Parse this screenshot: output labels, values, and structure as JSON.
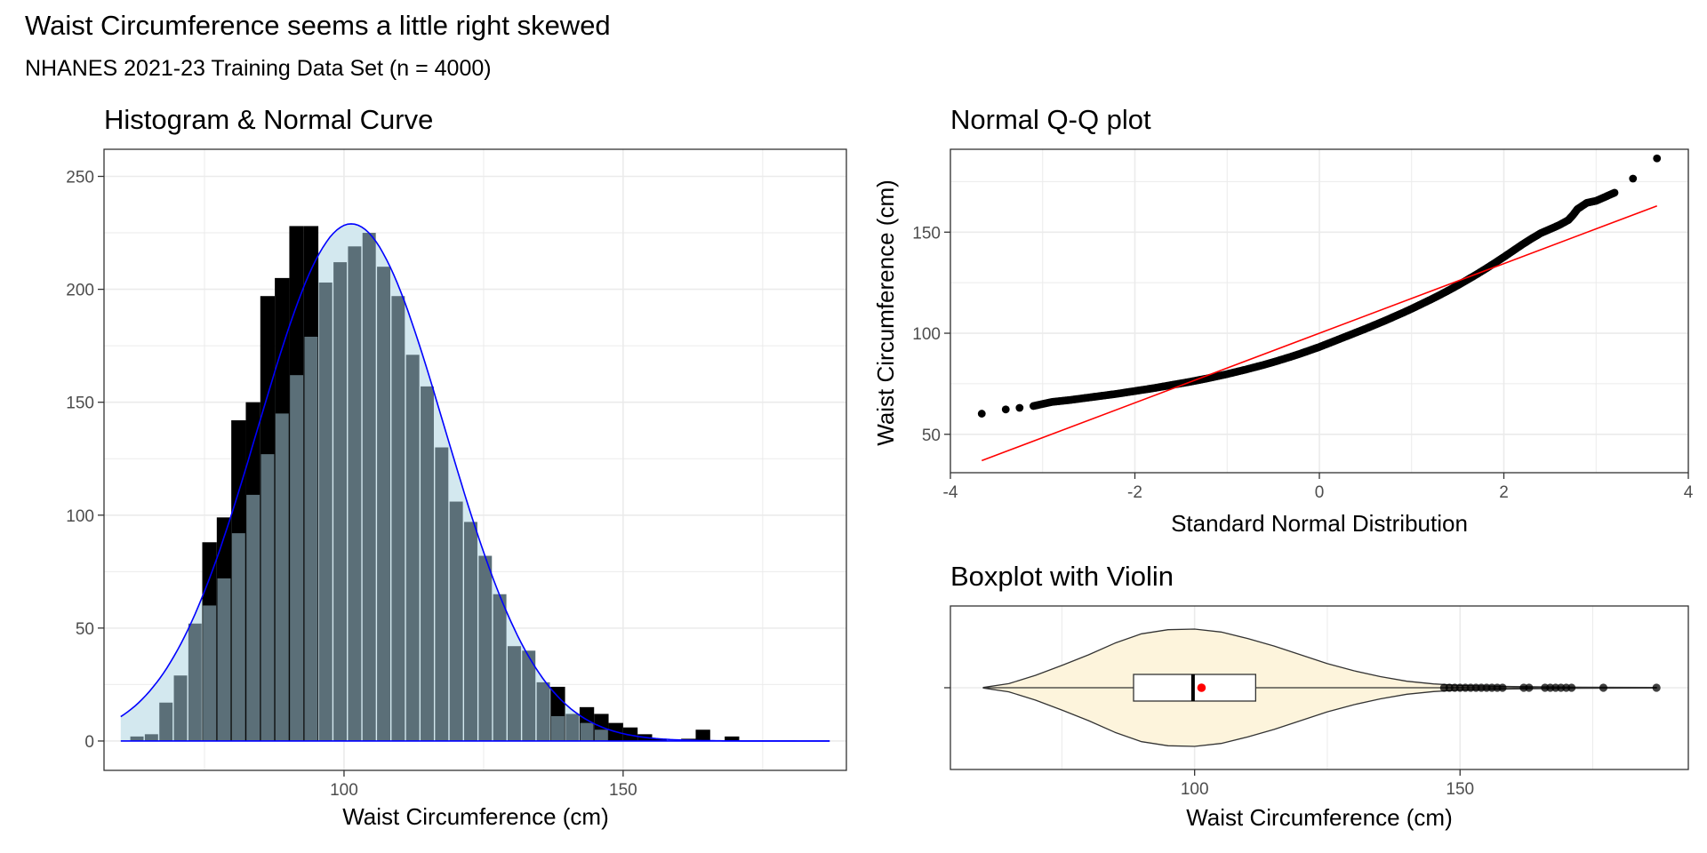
{
  "figure": {
    "title": "Waist Circumference seems a little right skewed",
    "subtitle": "NHANES 2021-23 Training Data Set (n = 4000)"
  },
  "colors": {
    "hist_fill": "#5b6f78",
    "hist_black": "#000000",
    "normal_area": "#d3e8ef",
    "normal_line": "#0000ff",
    "qq_ref_line": "#ff0000",
    "qq_points": "#000000",
    "violin_fill": "#fdf4dc",
    "mean_point": "#ff0000",
    "grid": "#ebebeb",
    "panel_border": "#333333"
  },
  "chart_data": [
    {
      "type": "bar",
      "title": "Histogram & Normal Curve",
      "xlabel": "Waist Circumference (cm)",
      "ylabel": "",
      "xlim": [
        57,
        190
      ],
      "ylim": [
        -13,
        262
      ],
      "x_ticks": [
        100,
        150
      ],
      "y_ticks": [
        0,
        50,
        100,
        150,
        200,
        250
      ],
      "bin_width": 2.6,
      "bins": [
        {
          "x": 62.9,
          "fill": 2,
          "black": 0
        },
        {
          "x": 65.5,
          "fill": 3,
          "black": 0
        },
        {
          "x": 68.1,
          "fill": 17,
          "black": 0
        },
        {
          "x": 70.7,
          "fill": 29,
          "black": 0
        },
        {
          "x": 73.3,
          "fill": 52,
          "black": 0
        },
        {
          "x": 75.9,
          "fill": 60,
          "black": 88
        },
        {
          "x": 78.5,
          "fill": 72,
          "black": 99
        },
        {
          "x": 81.1,
          "fill": 92,
          "black": 142
        },
        {
          "x": 83.7,
          "fill": 109,
          "black": 150
        },
        {
          "x": 86.3,
          "fill": 127,
          "black": 197
        },
        {
          "x": 88.9,
          "fill": 145,
          "black": 205
        },
        {
          "x": 91.5,
          "fill": 162,
          "black": 228
        },
        {
          "x": 94.1,
          "fill": 179,
          "black": 228
        },
        {
          "x": 96.7,
          "fill": 203,
          "black": 0
        },
        {
          "x": 99.3,
          "fill": 212,
          "black": 0
        },
        {
          "x": 101.9,
          "fill": 219,
          "black": 0
        },
        {
          "x": 104.5,
          "fill": 225,
          "black": 0
        },
        {
          "x": 107.1,
          "fill": 210,
          "black": 0
        },
        {
          "x": 109.7,
          "fill": 197,
          "black": 0
        },
        {
          "x": 112.3,
          "fill": 171,
          "black": 0
        },
        {
          "x": 114.9,
          "fill": 157,
          "black": 0
        },
        {
          "x": 117.5,
          "fill": 130,
          "black": 0
        },
        {
          "x": 120.1,
          "fill": 106,
          "black": 0
        },
        {
          "x": 122.7,
          "fill": 97,
          "black": 0
        },
        {
          "x": 125.3,
          "fill": 82,
          "black": 0
        },
        {
          "x": 127.9,
          "fill": 65,
          "black": 0
        },
        {
          "x": 130.5,
          "fill": 42,
          "black": 0
        },
        {
          "x": 133.1,
          "fill": 40,
          "black": 0
        },
        {
          "x": 135.7,
          "fill": 26,
          "black": 0
        },
        {
          "x": 138.3,
          "fill": 11,
          "black": 24
        },
        {
          "x": 140.9,
          "fill": 12,
          "black": 0
        },
        {
          "x": 143.5,
          "fill": 8,
          "black": 15
        },
        {
          "x": 146.1,
          "fill": 5,
          "black": 12
        },
        {
          "x": 148.7,
          "fill": 0,
          "black": 8
        },
        {
          "x": 151.3,
          "fill": 0,
          "black": 6
        },
        {
          "x": 153.9,
          "fill": 0,
          "black": 3
        },
        {
          "x": 156.5,
          "fill": 0,
          "black": 1
        },
        {
          "x": 161.7,
          "fill": 0,
          "black": 1
        },
        {
          "x": 164.3,
          "fill": 0,
          "black": 5
        },
        {
          "x": 169.5,
          "fill": 0,
          "black": 2
        }
      ],
      "normal_curve": {
        "mean": 101.3,
        "sd": 16.7,
        "peak": 229,
        "x_range": [
          60,
          187
        ]
      }
    },
    {
      "type": "scatter",
      "title": "Normal Q-Q plot",
      "xlabel": "Standard Normal Distribution",
      "ylabel": "Waist Circumference (cm)",
      "xlim": [
        -4,
        4
      ],
      "ylim": [
        31,
        191
      ],
      "x_ticks": [
        -4,
        -2,
        0,
        2,
        4
      ],
      "y_ticks": [
        50,
        100,
        150
      ],
      "reference_line": {
        "from": [
          -3.66,
          37
        ],
        "to": [
          3.66,
          163
        ]
      },
      "points": [
        [
          -3.66,
          60.2
        ],
        [
          -3.4,
          62.3
        ],
        [
          -3.25,
          63.1
        ],
        [
          -3.1,
          64.0
        ],
        [
          -3.0,
          65.0
        ],
        [
          -2.9,
          66.0
        ],
        [
          -2.8,
          66.5
        ],
        [
          -2.7,
          67.0
        ],
        [
          -2.6,
          67.6
        ],
        [
          -2.5,
          68.2
        ],
        [
          -2.4,
          68.8
        ],
        [
          -2.3,
          69.4
        ],
        [
          -2.2,
          70.0
        ],
        [
          -2.1,
          70.7
        ],
        [
          -2.0,
          71.4
        ],
        [
          -1.9,
          72.1
        ],
        [
          -1.8,
          72.8
        ],
        [
          -1.7,
          73.6
        ],
        [
          -1.6,
          74.4
        ],
        [
          -1.5,
          75.2
        ],
        [
          -1.4,
          76.0
        ],
        [
          -1.3,
          76.9
        ],
        [
          -1.2,
          77.8
        ],
        [
          -1.1,
          78.8
        ],
        [
          -1.0,
          79.8
        ],
        [
          -0.9,
          80.9
        ],
        [
          -0.8,
          82.0
        ],
        [
          -0.7,
          83.2
        ],
        [
          -0.6,
          84.4
        ],
        [
          -0.5,
          85.7
        ],
        [
          -0.4,
          87.1
        ],
        [
          -0.3,
          88.5
        ],
        [
          -0.2,
          90.0
        ],
        [
          -0.1,
          91.6
        ],
        [
          0.0,
          93.2
        ],
        [
          0.1,
          95.0
        ],
        [
          0.2,
          96.8
        ],
        [
          0.3,
          98.6
        ],
        [
          0.4,
          100.4
        ],
        [
          0.5,
          102.2
        ],
        [
          0.6,
          104.1
        ],
        [
          0.7,
          106.0
        ],
        [
          0.8,
          108.0
        ],
        [
          0.9,
          110.0
        ],
        [
          1.0,
          112.1
        ],
        [
          1.1,
          114.3
        ],
        [
          1.2,
          116.5
        ],
        [
          1.3,
          118.8
        ],
        [
          1.4,
          121.2
        ],
        [
          1.5,
          123.7
        ],
        [
          1.6,
          126.3
        ],
        [
          1.7,
          129.0
        ],
        [
          1.8,
          131.8
        ],
        [
          1.9,
          134.7
        ],
        [
          2.0,
          137.7
        ],
        [
          2.1,
          140.8
        ],
        [
          2.2,
          143.9
        ],
        [
          2.3,
          146.8
        ],
        [
          2.4,
          149.5
        ],
        [
          2.5,
          151.5
        ],
        [
          2.6,
          153.5
        ],
        [
          2.7,
          156.0
        ],
        [
          2.75,
          158.5
        ],
        [
          2.8,
          161.5
        ],
        [
          2.9,
          164.5
        ],
        [
          3.0,
          165.5
        ],
        [
          3.1,
          167.5
        ],
        [
          3.2,
          169.5
        ],
        [
          3.4,
          176.5
        ],
        [
          3.66,
          186.5
        ]
      ]
    },
    {
      "type": "boxplot",
      "title": "Boxplot with Violin",
      "xlabel": "Waist Circumference (cm)",
      "ylabel": "",
      "xlim": [
        54,
        193
      ],
      "x_ticks": [
        100,
        150
      ],
      "box": {
        "q1": 88.5,
        "median": 99.7,
        "q3": 111.5,
        "whisker_low": 60.2,
        "mean": 101.3
      },
      "violin": {
        "x": [
          60.2,
          65,
          70,
          75,
          80,
          85,
          90,
          95,
          100,
          105,
          110,
          115,
          120,
          125,
          130,
          135,
          140,
          145,
          150,
          160,
          170,
          187
        ],
        "half_width": [
          0.005,
          0.07,
          0.21,
          0.38,
          0.56,
          0.76,
          0.92,
          0.99,
          1.0,
          0.95,
          0.84,
          0.71,
          0.56,
          0.41,
          0.29,
          0.19,
          0.11,
          0.065,
          0.04,
          0.02,
          0.01,
          0.004
        ]
      },
      "outliers": [
        147,
        148,
        149,
        150,
        151,
        152,
        153,
        154,
        155,
        156,
        157,
        158,
        162,
        163,
        166,
        167,
        168,
        169,
        170,
        171,
        177,
        187
      ]
    }
  ]
}
